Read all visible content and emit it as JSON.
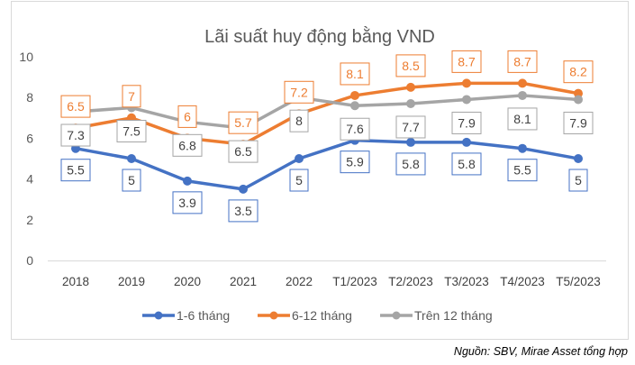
{
  "chart_data": {
    "type": "line",
    "title": "Lãi suất huy động bằng VND",
    "categories": [
      "2018",
      "2019",
      "2020",
      "2021",
      "2022",
      "T1/2023",
      "T2/2023",
      "T3/2023",
      "T4/2023",
      "T5/2023"
    ],
    "ylim": [
      0,
      10
    ],
    "yticks": [
      0,
      2,
      4,
      6,
      8,
      10
    ],
    "grid": false,
    "legend": "bottom",
    "series": [
      {
        "name": "1-6 tháng",
        "color": "#4472C4",
        "values": [
          5.5,
          5,
          3.9,
          3.5,
          5,
          5.9,
          5.8,
          5.8,
          5.5,
          5
        ]
      },
      {
        "name": "6-12 tháng",
        "color": "#ED7D31",
        "values": [
          6.5,
          7,
          6,
          5.7,
          7.2,
          8.1,
          8.5,
          8.7,
          8.7,
          8.2
        ]
      },
      {
        "name": "Trên 12 tháng",
        "color": "#A5A5A5",
        "values": [
          7.3,
          7.5,
          6.8,
          6.5,
          8,
          7.6,
          7.7,
          7.9,
          8.1,
          7.9
        ]
      }
    ]
  },
  "source": "Nguồn: SBV, Mirae Asset tổng hợp"
}
